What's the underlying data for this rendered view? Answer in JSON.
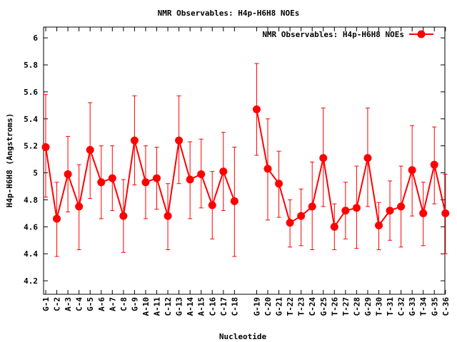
{
  "chart_data": {
    "type": "line",
    "title": "NMR Observables: H4p-H6H8 NOEs",
    "xlabel": "Nucleotide",
    "ylabel": "H4p-H6H8 (Angstroms)",
    "ylim": [
      4.1,
      6.08
    ],
    "yticks": [
      "4.2",
      "4.4",
      "4.6",
      "4.8",
      "5",
      "5.2",
      "5.4",
      "5.6",
      "5.8",
      "6"
    ],
    "grid": false,
    "legend_position": "top-right",
    "colors": {
      "series": "#ff0000"
    },
    "categories": [
      "G-1",
      "C-2",
      "A-3",
      "C-4",
      "G-5",
      "A-6",
      "A-7",
      "C-8",
      "G-9",
      "A-10",
      "A-11",
      "C-12",
      "G-13",
      "A-14",
      "A-15",
      "C-16",
      "C-17",
      "C-18",
      "G-19",
      "C-20",
      "G-21",
      "T-22",
      "T-23",
      "C-24",
      "G-25",
      "T-26",
      "T-27",
      "C-28",
      "G-29",
      "T-30",
      "T-31",
      "C-32",
      "G-33",
      "T-34",
      "G-35",
      "C-36"
    ],
    "series": [
      {
        "name": "NMR Observables: H4p-H6H8 NOEs",
        "values": [
          5.19,
          4.66,
          4.99,
          4.75,
          5.17,
          4.93,
          4.96,
          4.68,
          5.24,
          4.93,
          4.96,
          4.68,
          5.24,
          4.95,
          4.99,
          4.76,
          5.01,
          4.79,
          5.47,
          5.03,
          4.92,
          4.63,
          4.68,
          4.75,
          5.11,
          4.6,
          4.72,
          4.74,
          5.11,
          4.61,
          4.72,
          4.75,
          5.02,
          4.7,
          5.06,
          4.7
        ],
        "error_low": [
          4.82,
          4.38,
          4.71,
          4.43,
          4.81,
          4.66,
          4.72,
          4.41,
          4.91,
          4.66,
          4.73,
          4.43,
          4.92,
          4.66,
          4.74,
          4.51,
          4.72,
          4.38,
          5.13,
          4.65,
          4.67,
          4.45,
          4.46,
          4.43,
          4.75,
          4.43,
          4.51,
          4.44,
          4.75,
          4.43,
          4.5,
          4.45,
          4.68,
          4.46,
          4.77,
          4.4
        ],
        "error_high": [
          5.58,
          4.93,
          5.27,
          5.06,
          5.52,
          5.2,
          5.2,
          4.95,
          5.57,
          5.2,
          5.19,
          4.92,
          5.57,
          5.23,
          5.25,
          5.01,
          5.3,
          5.19,
          5.81,
          5.4,
          5.16,
          4.8,
          4.88,
          5.08,
          5.48,
          4.77,
          4.93,
          5.05,
          5.48,
          4.78,
          4.94,
          5.05,
          5.35,
          4.93,
          5.34,
          4.99
        ],
        "gap_before": [
          "G-19"
        ]
      }
    ]
  }
}
